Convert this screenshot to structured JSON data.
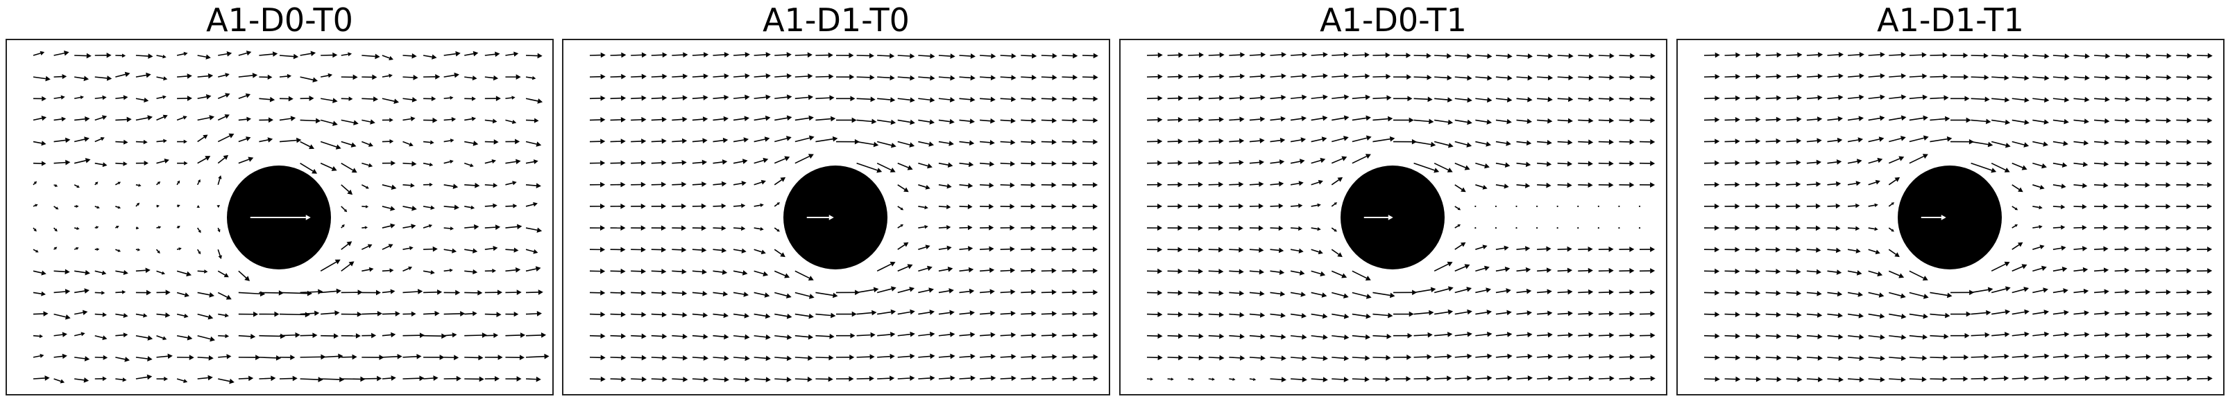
{
  "figure": {
    "panels": [
      {
        "title": "A1-D0-T0"
      },
      {
        "title": "A1-D1-T0"
      },
      {
        "title": "A1-D0-T1"
      },
      {
        "title": "A1-D1-T1"
      }
    ]
  },
  "chart_data": [
    {
      "type": "quiver",
      "title": "A1-D0-T0",
      "grid": false,
      "axes_ticks": false,
      "field": {
        "columns": 25,
        "rows": 16,
        "obstacle": "disk",
        "obstacle_color": "#000000",
        "obstacle_vector_color": "#ffffff",
        "obstacle_vector_scale": 1.45,
        "vector_color": "#000000",
        "mode": "turbulent-wake"
      }
    },
    {
      "type": "quiver",
      "title": "A1-D1-T0",
      "grid": false,
      "axes_ticks": false,
      "field": {
        "columns": 25,
        "rows": 16,
        "obstacle": "disk",
        "obstacle_color": "#000000",
        "obstacle_vector_color": "#ffffff",
        "obstacle_vector_scale": 0.65,
        "vector_color": "#000000",
        "mode": "smooth"
      }
    },
    {
      "type": "quiver",
      "title": "A1-D0-T1",
      "grid": false,
      "axes_ticks": false,
      "field": {
        "columns": 25,
        "rows": 16,
        "obstacle": "disk",
        "obstacle_color": "#000000",
        "obstacle_vector_color": "#ffffff",
        "obstacle_vector_scale": 0.7,
        "vector_color": "#000000",
        "mode": "stagnant-wake"
      }
    },
    {
      "type": "quiver",
      "title": "A1-D1-T1",
      "grid": false,
      "axes_ticks": false,
      "field": {
        "columns": 25,
        "rows": 16,
        "obstacle": "disk",
        "obstacle_color": "#000000",
        "obstacle_vector_color": "#ffffff",
        "obstacle_vector_scale": 0.6,
        "vector_color": "#000000",
        "mode": "smooth"
      }
    }
  ]
}
